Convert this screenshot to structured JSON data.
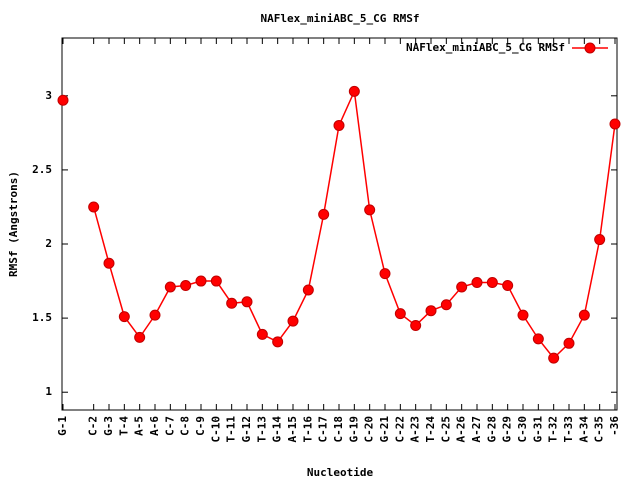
{
  "chart_data": {
    "type": "line",
    "title": "NAFlex_miniABC_5_CG RMSf",
    "x_label": "Nucleotide",
    "y_label": "RMSf (Angstrons)",
    "categories": [
      "G-1",
      null,
      "C-2",
      "G-3",
      "T-4",
      "A-5",
      "A-6",
      "C-7",
      "C-8",
      "C-9",
      "C-10",
      "T-11",
      "G-12",
      "T-13",
      "G-14",
      "A-15",
      "T-16",
      "C-17",
      "C-18",
      "G-19",
      "C-20",
      "G-21",
      "C-22",
      "A-23",
      "T-24",
      "C-25",
      "A-26",
      "A-27",
      "G-28",
      "G-29",
      "C-30",
      "G-31",
      "T-32",
      "T-33",
      "A-34",
      "C-35",
      "-36"
    ],
    "series": [
      {
        "name": "NAFlex_miniABC_5_CG RMSf",
        "color": "#ff0000",
        "values": [
          2.97,
          null,
          2.25,
          1.87,
          1.51,
          1.37,
          1.52,
          1.71,
          1.72,
          1.75,
          1.75,
          1.6,
          1.61,
          1.39,
          1.34,
          1.48,
          1.69,
          2.2,
          2.8,
          3.03,
          2.23,
          1.8,
          1.53,
          1.45,
          1.55,
          1.59,
          1.71,
          1.74,
          1.74,
          1.72,
          1.52,
          1.36,
          1.23,
          1.33,
          1.52,
          2.03,
          2.81
        ]
      }
    ],
    "ylim": [
      0.88,
      3.39
    ],
    "yticks": [
      1,
      1.5,
      2,
      2.5,
      3
    ],
    "legend": "top right",
    "grid": false
  }
}
